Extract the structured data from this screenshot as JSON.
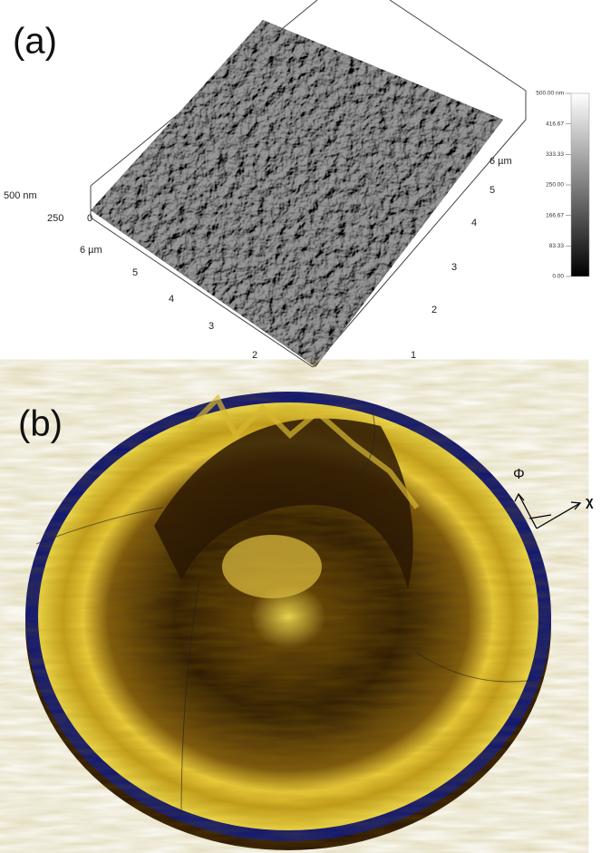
{
  "panels": [
    {
      "label": "(a)",
      "z_axis": {
        "label": "500 nm",
        "ticks": [
          "250",
          "0"
        ]
      },
      "x_axis": {
        "unit": "6 µm",
        "ticks": [
          "5",
          "4",
          "3",
          "2"
        ]
      },
      "y_axis": {
        "unit": "6 µm",
        "ticks": [
          "5",
          "4",
          "3",
          "2",
          "1"
        ]
      },
      "colorbar": {
        "ticks": [
          "500.00 nm",
          "416.67",
          "333.33",
          "250.00",
          "166.67",
          "83.33",
          "0.00"
        ]
      }
    },
    {
      "label": "(b)",
      "axes": [
        "Φ",
        "χ"
      ]
    }
  ]
}
